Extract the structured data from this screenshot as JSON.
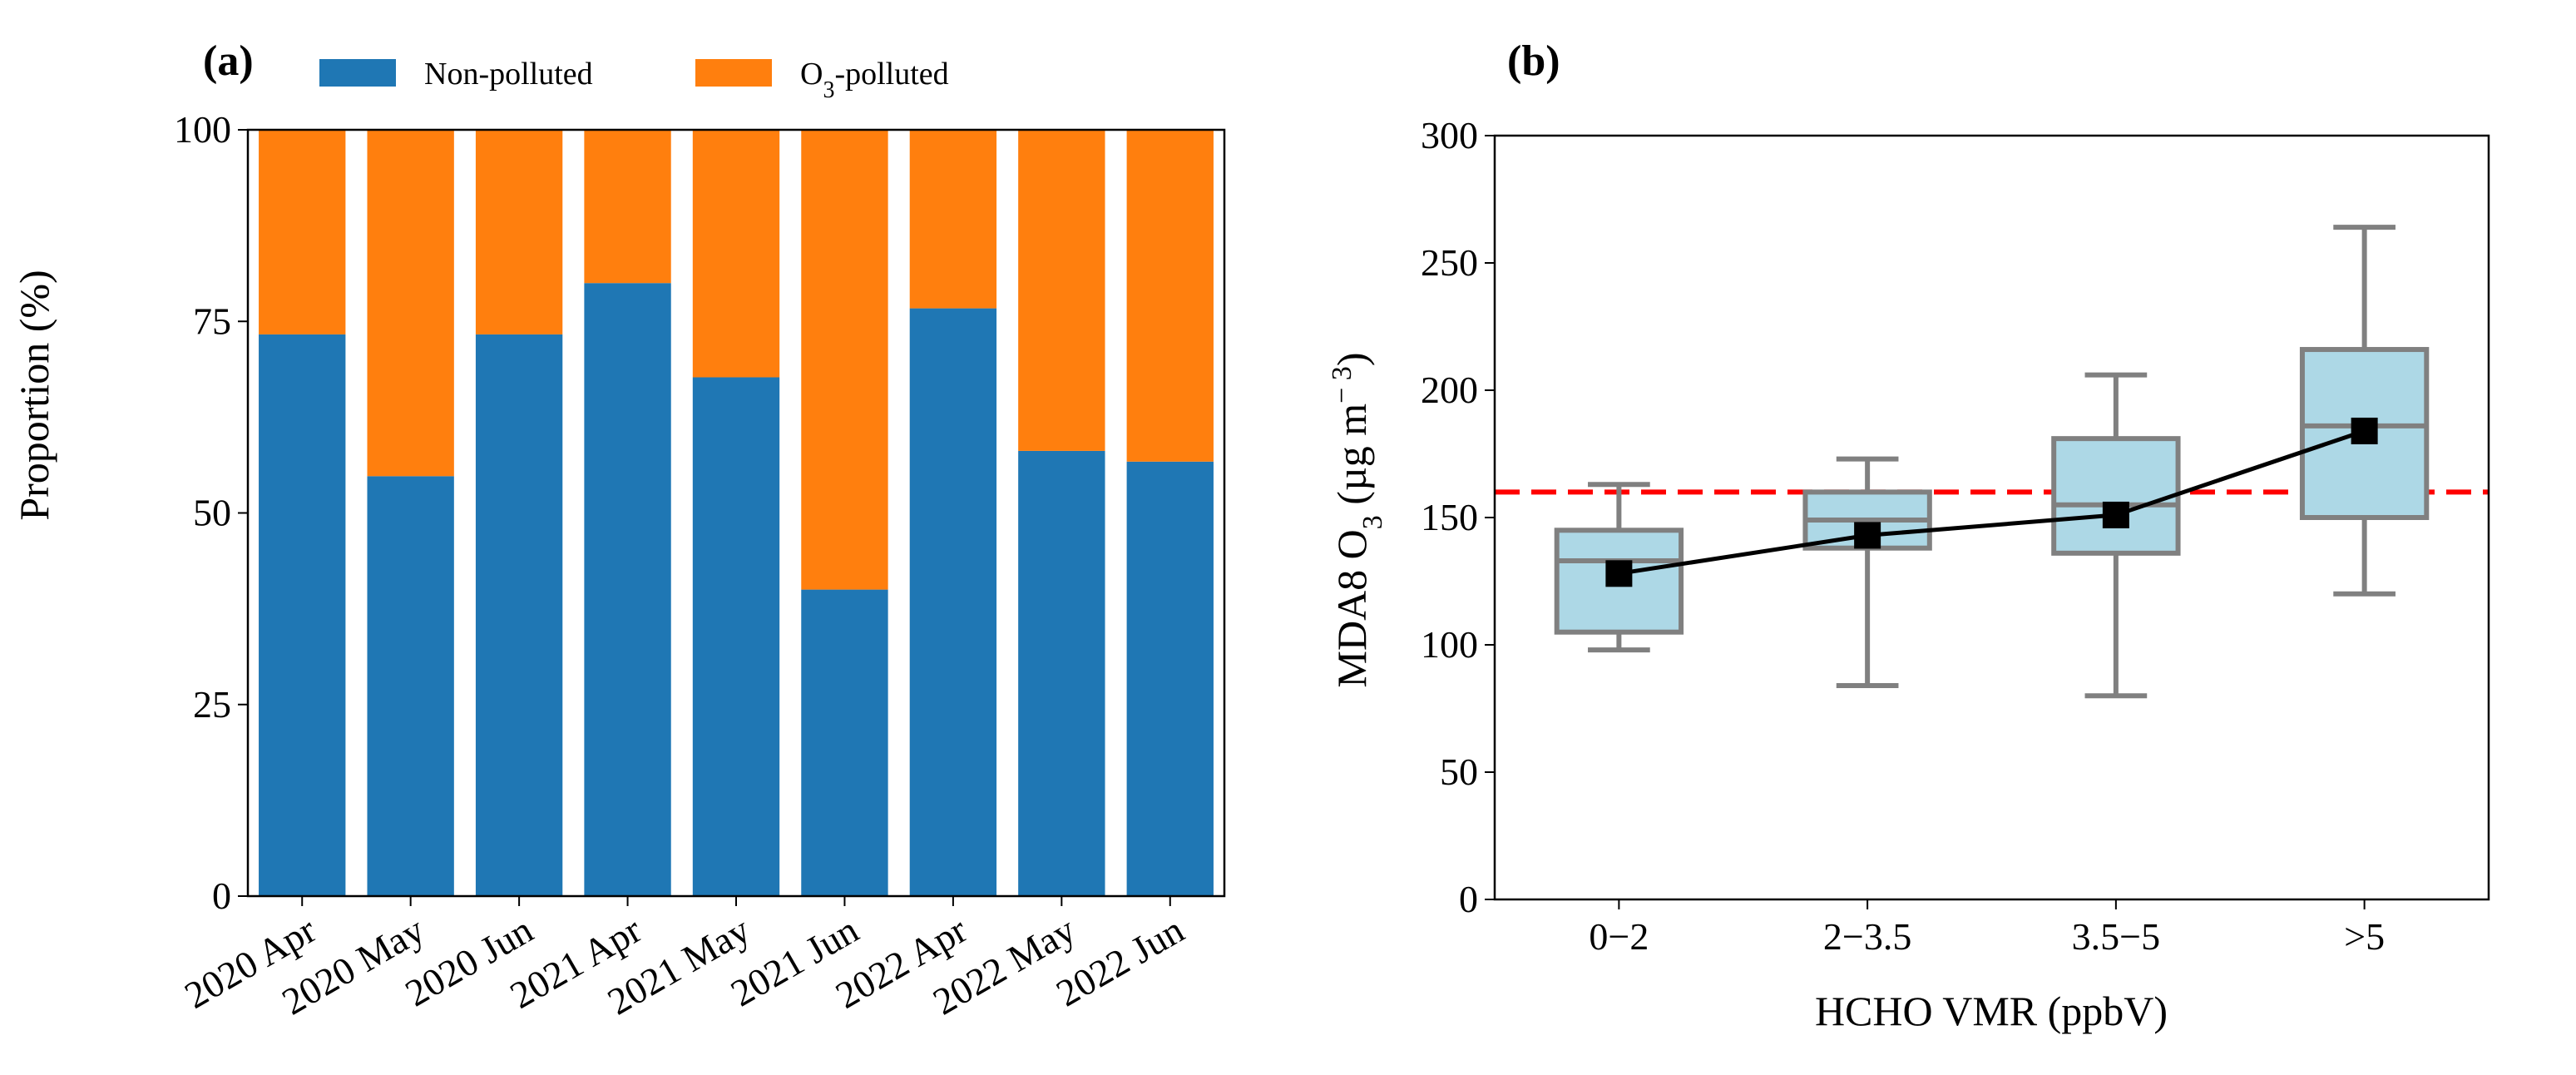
{
  "chart_data": [
    {
      "panel": "(a)",
      "type": "bar",
      "stacked": true,
      "ylabel": "Proportion (%)",
      "xlabel": "",
      "ylim": [
        0,
        100
      ],
      "yticks": [
        0,
        25,
        50,
        75,
        100
      ],
      "grid": false,
      "legend": "top",
      "categories": [
        "2020 Apr",
        "2020 May",
        "2020 Jun",
        "2021 Apr",
        "2021 May",
        "2021 Jun",
        "2022 Apr",
        "2022 May",
        "2022 Jun"
      ],
      "series": [
        {
          "name": "Non-polluted",
          "color": "#1f77b4",
          "values": [
            73.3,
            54.8,
            73.3,
            80.0,
            67.7,
            40.0,
            76.7,
            58.1,
            56.7
          ]
        },
        {
          "name": "O3-polluted",
          "name_base": "O",
          "name_sub": "3",
          "name_rest": "-polluted",
          "color": "#ff7f0e",
          "values": [
            26.7,
            45.2,
            26.7,
            20.0,
            32.3,
            60.0,
            23.3,
            41.9,
            43.3
          ]
        }
      ]
    },
    {
      "panel": "(b)",
      "type": "box",
      "xlabel": "HCHO VMR (ppbV)",
      "ylabel": "MDA8 O3 (µg m−3)",
      "ylabel_parts": {
        "a": "MDA8 O",
        "sub": "3",
        "b": " (µg m",
        "sup": "− 3",
        "c": ")"
      },
      "ylim": [
        0,
        300
      ],
      "yticks": [
        0,
        50,
        100,
        150,
        200,
        250,
        300
      ],
      "grid": false,
      "categories": [
        "0−2",
        "2−3.5",
        "3.5−5",
        ">5"
      ],
      "boxes": [
        {
          "whislo": 98,
          "q1": 105,
          "med": 133,
          "q3": 145,
          "whishi": 163,
          "mean": 128
        },
        {
          "whislo": 84,
          "q1": 138,
          "med": 149,
          "q3": 160,
          "whishi": 173,
          "mean": 143
        },
        {
          "whislo": 80,
          "q1": 136,
          "med": 155,
          "q3": 181,
          "whishi": 206,
          "mean": 151
        },
        {
          "whislo": 120,
          "q1": 150,
          "med": 186,
          "q3": 216,
          "whishi": 264,
          "mean": 184
        }
      ],
      "reference_line": {
        "y": 160,
        "color": "#ff0000",
        "style": "dashed"
      },
      "box_color": "#add8e6",
      "edge_color": "#808080"
    }
  ]
}
